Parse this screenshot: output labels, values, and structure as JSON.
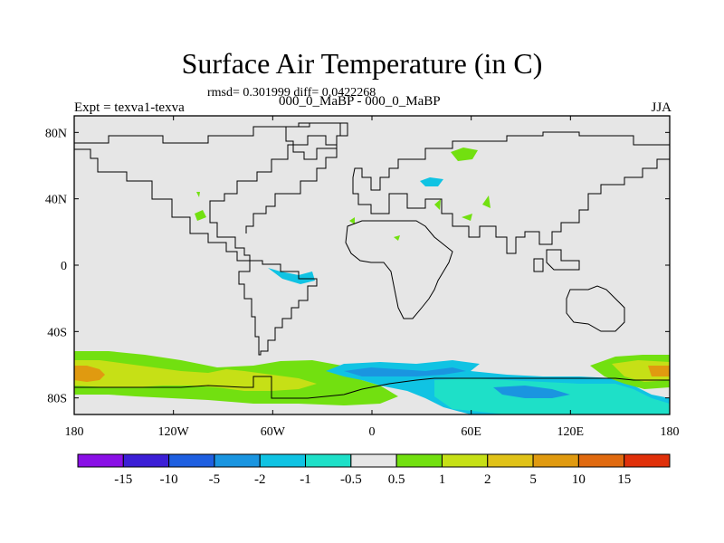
{
  "title": "Surface Air Temperature (in C)",
  "stats": "rmsd= 0.301999 diff= 0.0422268",
  "experiment": "Expt = texva1-texva",
  "period": "000_0_MaBP - 000_0_MaBP",
  "season": "JJA",
  "map": {
    "lon_range": [
      -180,
      180
    ],
    "lat_range": [
      -90,
      90
    ],
    "x_ticks": [
      {
        "value": -180,
        "label": "180"
      },
      {
        "value": -120,
        "label": "120W"
      },
      {
        "value": -60,
        "label": "60W"
      },
      {
        "value": 0,
        "label": "0"
      },
      {
        "value": 60,
        "label": "60E"
      },
      {
        "value": 120,
        "label": "120E"
      },
      {
        "value": 180,
        "label": "180"
      }
    ],
    "y_ticks": [
      {
        "value": 80,
        "label": "80N"
      },
      {
        "value": 40,
        "label": "40N"
      },
      {
        "value": 0,
        "label": "0"
      },
      {
        "value": -40,
        "label": "40S"
      },
      {
        "value": -80,
        "label": "80S"
      }
    ],
    "background_color": "#e6e6e6"
  },
  "colorbar": {
    "colors": [
      "#8a10e6",
      "#3c1fd6",
      "#1e5fe0",
      "#1a95e0",
      "#10c3e3",
      "#1ee0c8",
      "#e6e6e6",
      "#72e010",
      "#c6e016",
      "#e0c218",
      "#e09a10",
      "#e06a10",
      "#e0300a"
    ],
    "labels": [
      "-15",
      "-10",
      "-5",
      "-2",
      "-1",
      "-0.5",
      "0.5",
      "1",
      "2",
      "5",
      "10",
      "15"
    ]
  }
}
